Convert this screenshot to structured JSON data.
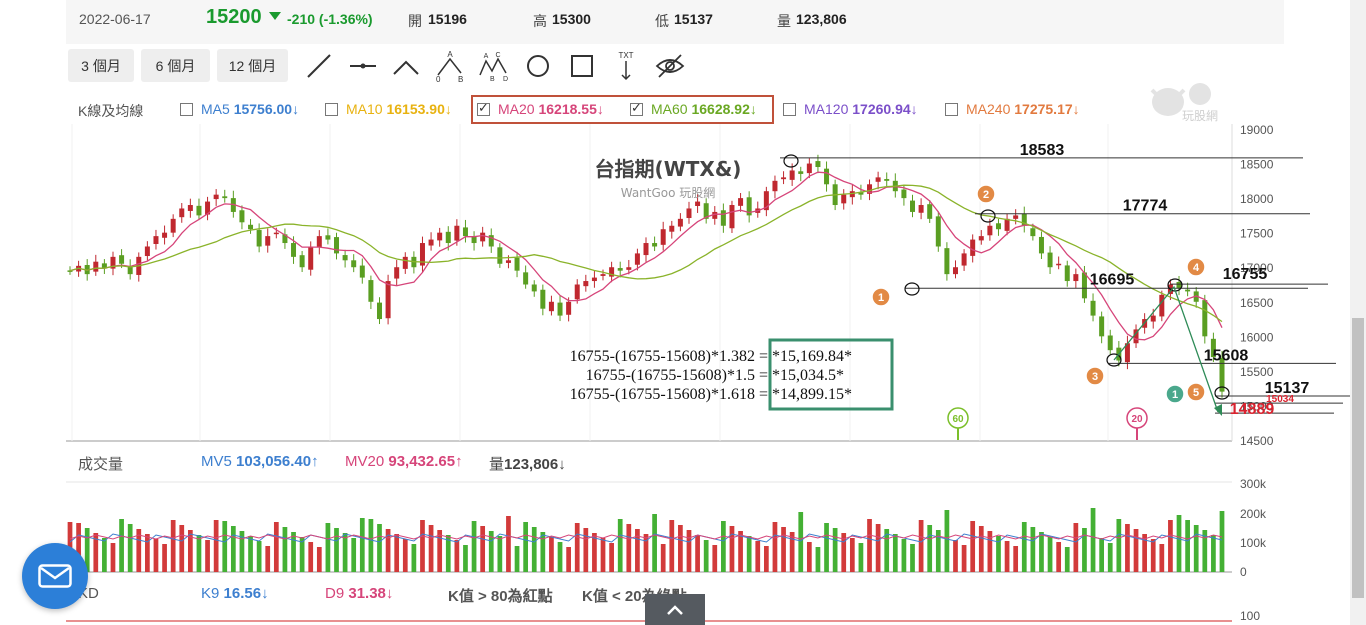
{
  "quote": {
    "date": "2022-06-17",
    "price": "15200",
    "change": "-210 (-1.36%)",
    "open_label": "開",
    "open": "15196",
    "high_label": "高",
    "high": "15300",
    "low_label": "低",
    "low": "15137",
    "vol_label": "量",
    "volume": "123,806"
  },
  "toolbar": {
    "periods": [
      "3 個月",
      "6 個月",
      "12 個月"
    ],
    "tools": [
      "line-tool-icon",
      "horizontal-line-icon",
      "angle-tool-icon",
      "abc-pattern-icon",
      "abcd-pattern-icon",
      "circle-tool-icon",
      "rectangle-tool-icon",
      "text-tool-icon",
      "hide-drawings-icon"
    ],
    "pattern_letters": {
      "a": "A",
      "b": "B",
      "c": "C",
      "d": "D",
      "zero": "0"
    },
    "txt": "TXT"
  },
  "ma": {
    "title": "K線及均線",
    "items": [
      {
        "label": "MA5",
        "value": "15756.00",
        "arrow": "↓",
        "checked": false,
        "color": "#3d7fcf"
      },
      {
        "label": "MA10",
        "value": "16153.90",
        "arrow": "↓",
        "checked": false,
        "color": "#e8b210"
      },
      {
        "label": "MA20",
        "value": "16218.55",
        "arrow": "↓",
        "checked": true,
        "color": "#d6457a"
      },
      {
        "label": "MA60",
        "value": "16628.92",
        "arrow": "↓",
        "checked": true,
        "color": "#6aa823"
      },
      {
        "label": "MA120",
        "value": "17260.94",
        "arrow": "↓",
        "checked": false,
        "color": "#7b4fc9"
      },
      {
        "label": "MA240",
        "value": "17275.17",
        "arrow": "↓",
        "checked": false,
        "color": "#e27a3f"
      }
    ]
  },
  "chart_data": {
    "type": "candlestick",
    "title": "台指期(WTX&)",
    "subtitle": "WantGoo 玩股網",
    "ylim": [
      14500,
      19000
    ],
    "yticks": [
      "19000",
      "18500",
      "18000",
      "17500",
      "17000",
      "16500",
      "16000",
      "15500",
      "15000",
      "14500"
    ],
    "levels": [
      "18583",
      "17774",
      "16695",
      "16755",
      "15608",
      "15137",
      "15034",
      "14889"
    ],
    "wave_markers": [
      "1",
      "2",
      "3",
      "4",
      "5",
      "1"
    ],
    "ma_markers": [
      "60",
      "20"
    ],
    "formulas": [
      {
        "expr": "16755-(16755-15608)*1.382 = ",
        "result": "*15,169.84*"
      },
      {
        "expr": "16755-(16755-15608)*1.5 = ",
        "result": "*15,034.5*"
      },
      {
        "expr": "16755-(16755-15608)*1.618 = ",
        "result": "*14,899.15*"
      }
    ],
    "closes": [
      16950,
      17020,
      16900,
      17080,
      16980,
      17150,
      17050,
      16900,
      17150,
      17300,
      17450,
      17500,
      17700,
      17850,
      17900,
      17750,
      17950,
      18050,
      18000,
      17800,
      17650,
      17550,
      17300,
      17450,
      17500,
      17350,
      17150,
      17000,
      17300,
      17450,
      17400,
      17200,
      17100,
      17000,
      16850,
      16500,
      16250,
      16800,
      17000,
      17150,
      17000,
      17350,
      17400,
      17500,
      17350,
      17600,
      17450,
      17350,
      17500,
      17300,
      17050,
      17100,
      16950,
      16750,
      16650,
      16400,
      16500,
      16300,
      16500,
      16750,
      16800,
      16850,
      16900,
      17000,
      16950,
      17000,
      17200,
      17350,
      17300,
      17550,
      17600,
      17700,
      17850,
      17950,
      17700,
      17800,
      17600,
      17900,
      18000,
      17750,
      17850,
      18100,
      18250,
      18300,
      18400,
      18350,
      18500,
      18450,
      18200,
      17900,
      18050,
      18100,
      18050,
      18200,
      18300,
      18250,
      18100,
      18000,
      17800,
      17900,
      17700,
      17300,
      16900,
      17000,
      17200,
      17400,
      17450,
      17600,
      17550,
      17700,
      17750,
      17600,
      17450,
      17200,
      17000,
      17050,
      16800,
      16900,
      16550,
      16300,
      16000,
      15800,
      15650,
      15900,
      16100,
      16250,
      16300,
      16600,
      16750,
      16700,
      16650,
      16500,
      16000,
      15700,
      15200
    ],
    "volume_panel": {
      "title": "成交量",
      "mv5_label": "MV5",
      "mv5": "103,056.40",
      "mv5_arrow": "↑",
      "mv20_label": "MV20",
      "mv20": "93,432.65",
      "mv20_arrow": "↑",
      "vol_label": "量",
      "vol": "123,806",
      "vol_arrow": "↓",
      "yticks": [
        "300k",
        "200k",
        "100k",
        "0"
      ]
    },
    "kd_panel": {
      "title": "KD",
      "k_label": "K9",
      "k": "16.56",
      "k_arrow": "↓",
      "d_label": "D9",
      "d": "31.38",
      "d_arrow": "↓",
      "note1": "K值 > 80為紅點",
      "note2": "K值 < 20為綠點",
      "ytick": "100"
    }
  },
  "watermark": "玩股網"
}
